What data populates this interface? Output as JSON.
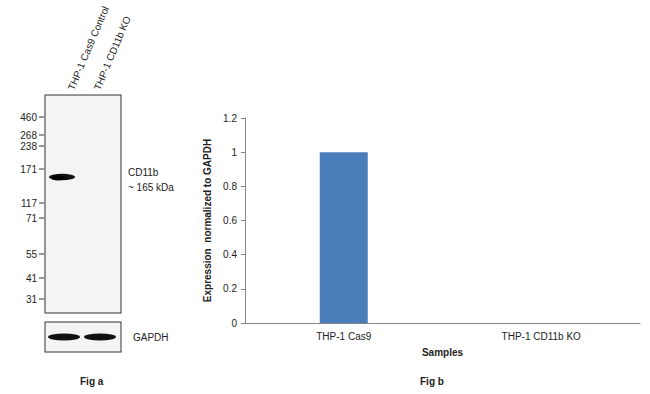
{
  "chart_data": {
    "type": "bar",
    "categories": [
      "THP-1 Cas9",
      "THP-1 CD11b KO"
    ],
    "values": [
      1,
      0
    ],
    "color": "#4a7ebb",
    "ylim": [
      0,
      1.2
    ],
    "yticks": [
      0,
      0.2,
      0.4,
      0.6,
      0.8,
      1,
      1.2
    ],
    "x_label": "Samples",
    "y_label": "Expression  normalized to GAPDH",
    "grid": false,
    "annotations": [
      "Fig b"
    ]
  },
  "blot": {
    "lanes": [
      "THP-1 Cas9 Control",
      "THP-1 CD11b KO"
    ],
    "markers": [
      460,
      268,
      238,
      171,
      117,
      71,
      55,
      41,
      31
    ],
    "band_label": [
      "CD11b",
      "~ 165 kDa"
    ],
    "loading_control": "GAPDH",
    "caption": "Fig a"
  }
}
